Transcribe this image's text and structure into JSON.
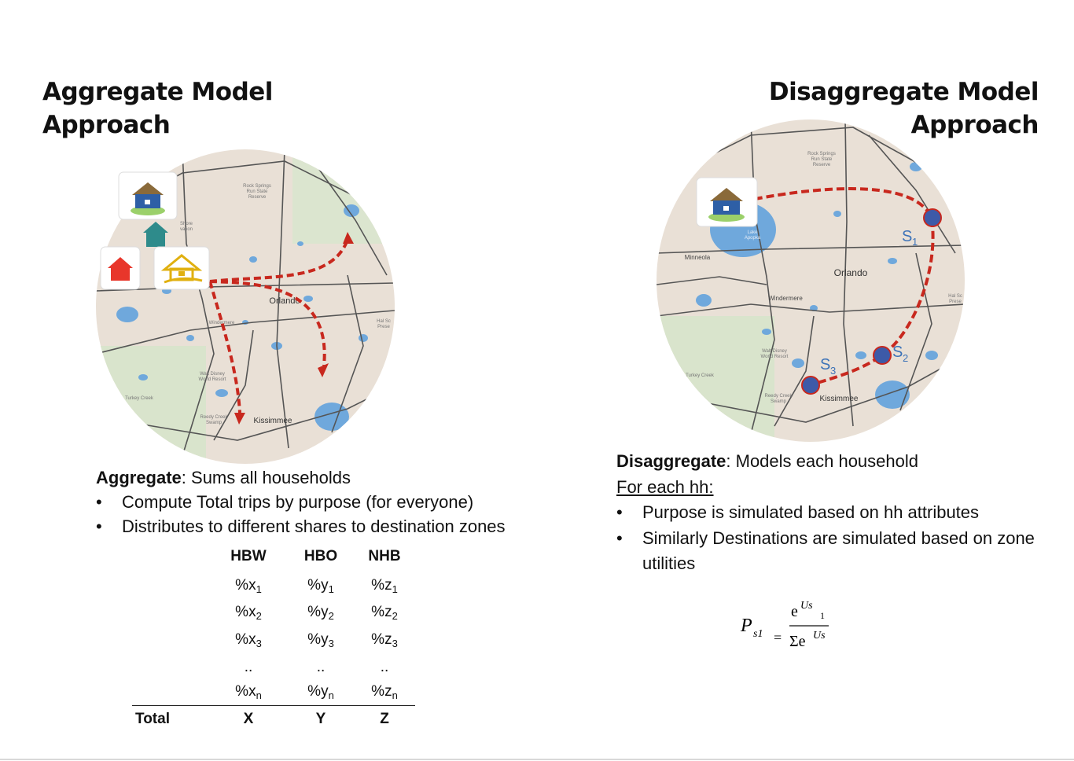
{
  "left_title": {
    "line1": "Aggregate Model",
    "line2": "Approach"
  },
  "right_title": {
    "line1": "Disaggregate Model",
    "line2": "Approach"
  },
  "map_labels": {
    "rock_springs": [
      "Rock Springs",
      "Run State",
      "Reserve"
    ],
    "orlando": "Orlando",
    "windermere": "Windermere",
    "kissimmee": "Kissimmee",
    "minneola": "Minneola",
    "turkey_creek": "Turkey Creek",
    "walt_disney": [
      "Walt Disney",
      "World Resort"
    ],
    "reedy_creek": [
      "Reedy Creek",
      "Swamp"
    ],
    "lake_apopka": [
      "Lake",
      "Apopka"
    ],
    "shore": [
      "Shore",
      "vation"
    ],
    "hal_scott": [
      "Hal Sc",
      "Prese"
    ],
    "ola": "ola"
  },
  "stops": {
    "s1": "S",
    "s1_sub": "1",
    "s2": "S",
    "s2_sub": "2",
    "s3": "S",
    "s3_sub": "3"
  },
  "aggregate": {
    "term": "Aggregate",
    "desc": ": Sums all households",
    "bullets": [
      "Compute Total trips by purpose (for everyone)",
      "Distributes to different shares to destination zones"
    ]
  },
  "table": {
    "headers": [
      "HBW",
      "HBO",
      "NHB"
    ],
    "rows": [
      [
        [
          "%x",
          "1"
        ],
        [
          "%y",
          "1"
        ],
        [
          "%z",
          "1"
        ]
      ],
      [
        [
          "%x",
          "2"
        ],
        [
          "%y",
          "2"
        ],
        [
          "%z",
          "2"
        ]
      ],
      [
        [
          "%x",
          "3"
        ],
        [
          "%y",
          "3"
        ],
        [
          "%z",
          "3"
        ]
      ],
      [
        [
          "..",
          ""
        ],
        [
          "..",
          ""
        ],
        [
          "..",
          ""
        ]
      ],
      [
        [
          "%x",
          "n"
        ],
        [
          "%y",
          "n"
        ],
        [
          "%z",
          "n"
        ]
      ]
    ],
    "total_label": "Total",
    "totals": [
      "X",
      "Y",
      "Z"
    ]
  },
  "disaggregate": {
    "term": "Disaggregate",
    "desc": ": Models each household",
    "subhead": "For each hh:",
    "bullets": [
      "Purpose is simulated based on hh attributes",
      "Similarly Destinations are simulated based on zone utilities"
    ]
  },
  "formula": {
    "P": "P",
    "P_sub": "s1",
    "eq": "=",
    "num": "e",
    "num_sup": "Us",
    "num_sup_sub": "1",
    "den": "Σe",
    "den_sup": "Us"
  },
  "colors": {
    "route": "#c8281e",
    "water": "#6fa8dc",
    "map_bg": "#e7ddd4",
    "stop": "#3d5aa8",
    "road": "#555555"
  }
}
